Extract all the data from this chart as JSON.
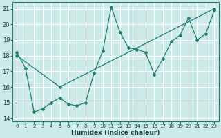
{
  "title": "",
  "xlabel": "Humidex (Indice chaleur)",
  "bg_color": "#cceae7",
  "grid_color": "#ffffff",
  "line_color": "#1a7a6e",
  "xlim": [
    -0.5,
    23.5
  ],
  "ylim": [
    13.8,
    21.4
  ],
  "yticks": [
    14,
    15,
    16,
    17,
    18,
    19,
    20,
    21
  ],
  "xticks": [
    0,
    1,
    2,
    3,
    4,
    5,
    6,
    7,
    8,
    9,
    10,
    11,
    12,
    13,
    14,
    15,
    16,
    17,
    18,
    19,
    20,
    21,
    22,
    23
  ],
  "line1_x": [
    0,
    1,
    2,
    3,
    4,
    5,
    6,
    7,
    8,
    9,
    10,
    11,
    12,
    13,
    14,
    15,
    16,
    17,
    18,
    19,
    20,
    21,
    22,
    23
  ],
  "line1_y": [
    18.2,
    17.2,
    14.4,
    14.6,
    15.0,
    15.3,
    14.9,
    14.8,
    15.0,
    16.9,
    18.3,
    21.1,
    19.5,
    18.5,
    18.4,
    18.2,
    16.8,
    17.8,
    18.9,
    19.3,
    20.4,
    19.0,
    19.4,
    20.9
  ],
  "line2_x": [
    0,
    5,
    23
  ],
  "line2_y": [
    18.0,
    16.0,
    21.0
  ]
}
